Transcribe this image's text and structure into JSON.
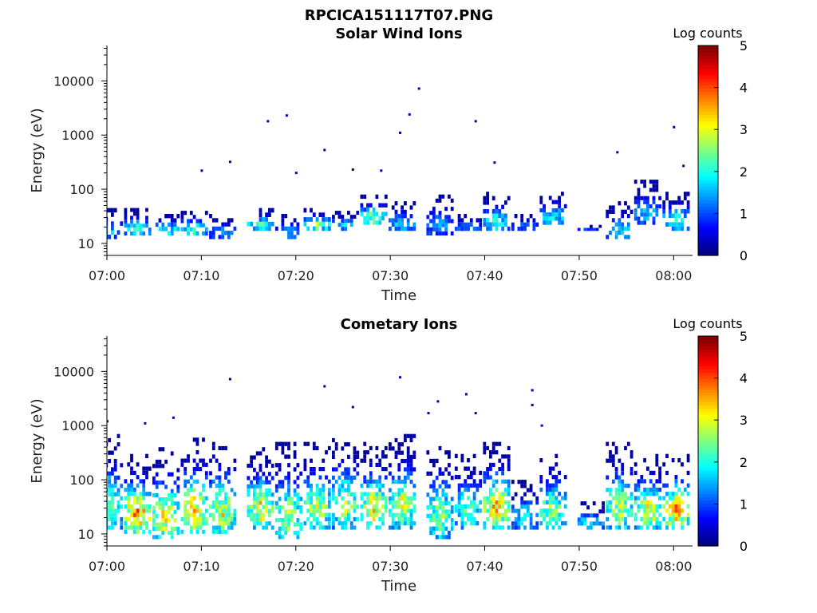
{
  "figure_title": "RPCICA151117T07.PNG",
  "chart_data": [
    {
      "type": "heatmap",
      "title": "Solar Wind Ions",
      "xlabel": "Time",
      "ylabel": "Energy (eV)",
      "x_ticks": [
        "07:00",
        "07:10",
        "07:20",
        "07:30",
        "07:40",
        "07:50",
        "08:00"
      ],
      "x_range": [
        "07:00",
        "08:02"
      ],
      "y_ticks": [
        10,
        100,
        1000,
        10000
      ],
      "y_tick_labels": [
        "10",
        "100",
        "1000",
        "10000"
      ],
      "y_range": [
        6,
        45000
      ],
      "y_scale": "log",
      "colorbar": {
        "label": "Log counts",
        "range": [
          0,
          5
        ],
        "ticks": [
          "0",
          "1",
          "2",
          "3",
          "4",
          "5"
        ],
        "colormap": "jet"
      },
      "bursts": [
        {
          "t": "07:00",
          "emin": 12,
          "emax": 45,
          "peak": 1.6
        },
        {
          "t": "07:03",
          "emin": 14,
          "emax": 45,
          "peak": 2.1
        },
        {
          "t": "07:06",
          "emin": 14,
          "emax": 35,
          "peak": 2.2
        },
        {
          "t": "07:09",
          "emin": 14,
          "emax": 40,
          "peak": 2.4
        },
        {
          "t": "07:12",
          "emin": 12,
          "emax": 35,
          "peak": 1.4
        },
        {
          "t": "07:16",
          "emin": 17,
          "emax": 45,
          "peak": 2.3
        },
        {
          "t": "07:19",
          "emin": 12,
          "emax": 35,
          "peak": 1.5
        },
        {
          "t": "07:22",
          "emin": 17,
          "emax": 45,
          "peak": 2.6
        },
        {
          "t": "07:25",
          "emin": 17,
          "emax": 40,
          "peak": 1.8
        },
        {
          "t": "07:28",
          "emin": 22,
          "emax": 80,
          "peak": 2.6
        },
        {
          "t": "07:31",
          "emin": 17,
          "emax": 60,
          "peak": 1.8
        },
        {
          "t": "07:35",
          "emin": 14,
          "emax": 80,
          "peak": 1.5
        },
        {
          "t": "07:38",
          "emin": 17,
          "emax": 35,
          "peak": 1.4
        },
        {
          "t": "07:41",
          "emin": 17,
          "emax": 90,
          "peak": 2.1
        },
        {
          "t": "07:44",
          "emin": 17,
          "emax": 35,
          "peak": 1.2
        },
        {
          "t": "07:47",
          "emin": 22,
          "emax": 90,
          "peak": 2.0
        },
        {
          "t": "07:51",
          "emin": 17,
          "emax": 22,
          "peak": 1.0
        },
        {
          "t": "07:54",
          "emin": 12,
          "emax": 60,
          "peak": 1.9
        },
        {
          "t": "07:57",
          "emin": 22,
          "emax": 150,
          "peak": 1.6
        },
        {
          "t": "08:00",
          "emin": 17,
          "emax": 90,
          "peak": 2.2
        }
      ],
      "scattered_points": [
        {
          "t": "07:17",
          "e": 1800
        },
        {
          "t": "07:19",
          "e": 2300
        },
        {
          "t": "07:23",
          "e": 530
        },
        {
          "t": "07:31",
          "e": 1100
        },
        {
          "t": "07:32",
          "e": 2400
        },
        {
          "t": "07:33",
          "e": 7200
        },
        {
          "t": "07:39",
          "e": 1800
        },
        {
          "t": "07:54",
          "e": 480
        },
        {
          "t": "08:00",
          "e": 1400
        },
        {
          "t": "07:10",
          "e": 220
        },
        {
          "t": "07:13",
          "e": 320
        },
        {
          "t": "07:20",
          "e": 200
        },
        {
          "t": "07:26",
          "e": 230
        },
        {
          "t": "07:29",
          "e": 220
        },
        {
          "t": "07:41",
          "e": 310
        },
        {
          "t": "08:01",
          "e": 270
        }
      ]
    },
    {
      "type": "heatmap",
      "title": "Cometary Ions",
      "xlabel": "Time",
      "ylabel": "Energy (eV)",
      "x_ticks": [
        "07:00",
        "07:10",
        "07:20",
        "07:30",
        "07:40",
        "07:50",
        "08:00"
      ],
      "x_range": [
        "07:00",
        "08:02"
      ],
      "y_ticks": [
        10,
        100,
        1000,
        10000
      ],
      "y_tick_labels": [
        "10",
        "100",
        "1000",
        "10000"
      ],
      "y_range": [
        6,
        45000
      ],
      "y_scale": "log",
      "colorbar": {
        "label": "Log counts",
        "range": [
          0,
          5
        ],
        "ticks": [
          "0",
          "1",
          "2",
          "3",
          "4",
          "5"
        ],
        "colormap": "jet"
      },
      "bursts": [
        {
          "t": "07:00",
          "emin": 12,
          "emax": 700,
          "peak": 2.7
        },
        {
          "t": "07:03",
          "emin": 10,
          "emax": 300,
          "peak": 3.8
        },
        {
          "t": "07:06",
          "emin": 8,
          "emax": 400,
          "peak": 3.2
        },
        {
          "t": "07:09",
          "emin": 10,
          "emax": 600,
          "peak": 3.4
        },
        {
          "t": "07:12",
          "emin": 10,
          "emax": 500,
          "peak": 3.1
        },
        {
          "t": "07:16",
          "emin": 12,
          "emax": 400,
          "peak": 3.2
        },
        {
          "t": "07:19",
          "emin": 8,
          "emax": 500,
          "peak": 2.8
        },
        {
          "t": "07:22",
          "emin": 12,
          "emax": 500,
          "peak": 3.0
        },
        {
          "t": "07:25",
          "emin": 12,
          "emax": 700,
          "peak": 2.8
        },
        {
          "t": "07:28",
          "emin": 12,
          "emax": 500,
          "peak": 3.2
        },
        {
          "t": "07:31",
          "emin": 12,
          "emax": 700,
          "peak": 2.9
        },
        {
          "t": "07:35",
          "emin": 8,
          "emax": 500,
          "peak": 2.6
        },
        {
          "t": "07:38",
          "emin": 12,
          "emax": 300,
          "peak": 2.4
        },
        {
          "t": "07:41",
          "emin": 12,
          "emax": 500,
          "peak": 3.5
        },
        {
          "t": "07:44",
          "emin": 12,
          "emax": 100,
          "peak": 2.0
        },
        {
          "t": "07:47",
          "emin": 12,
          "emax": 300,
          "peak": 2.7
        },
        {
          "t": "07:51",
          "emin": 12,
          "emax": 40,
          "peak": 2.0
        },
        {
          "t": "07:54",
          "emin": 12,
          "emax": 500,
          "peak": 2.9
        },
        {
          "t": "07:57",
          "emin": 12,
          "emax": 300,
          "peak": 3.2
        },
        {
          "t": "08:00",
          "emin": 12,
          "emax": 300,
          "peak": 3.6
        }
      ],
      "scattered_points": [
        {
          "t": "07:13",
          "e": 7200
        },
        {
          "t": "07:23",
          "e": 5300
        },
        {
          "t": "07:26",
          "e": 2200
        },
        {
          "t": "07:31",
          "e": 7800
        },
        {
          "t": "07:34",
          "e": 1700
        },
        {
          "t": "07:35",
          "e": 2800
        },
        {
          "t": "07:38",
          "e": 3800
        },
        {
          "t": "07:45",
          "e": 4500
        },
        {
          "t": "07:45",
          "e": 2400
        },
        {
          "t": "07:00",
          "e": 1200
        },
        {
          "t": "07:04",
          "e": 1100
        },
        {
          "t": "07:07",
          "e": 1400
        },
        {
          "t": "07:39",
          "e": 1700
        },
        {
          "t": "07:46",
          "e": 1000
        }
      ]
    }
  ]
}
